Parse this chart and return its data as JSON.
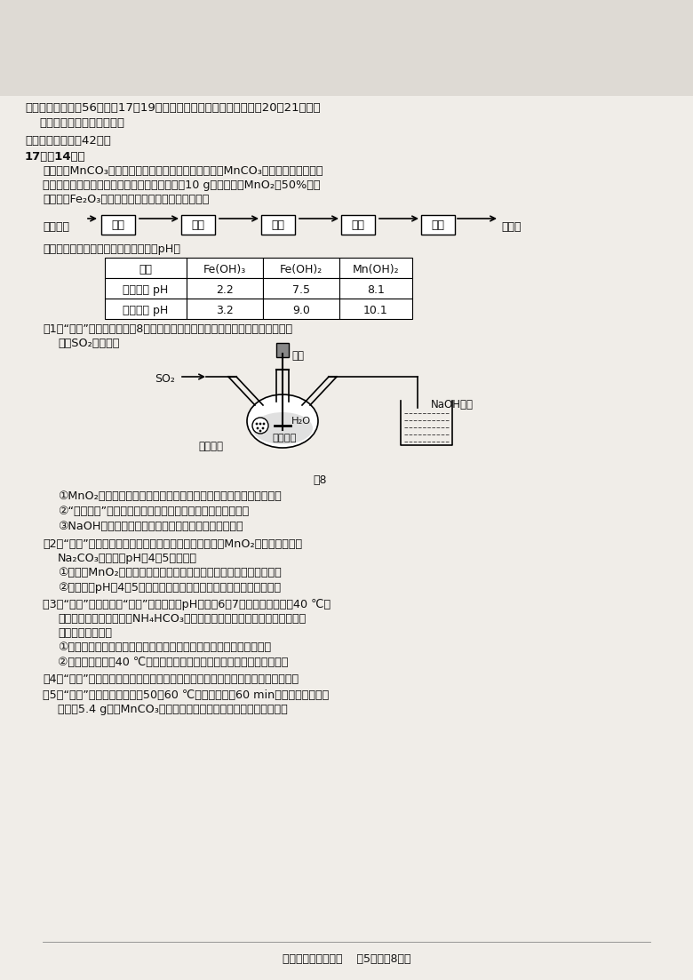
{
  "bg_color": "#f5f5f0",
  "page_bg": "#e8e8e0",
  "title_section": "二、非选择题：共56分。第17～19题为必考题，考生都必须作答。第20～21题为选\n   考题，考生根据要求作答。",
  "subtitle": "（一）必考题：共42分。",
  "q17_header": "17．（14分）",
  "flow_steps": [
    "软锰矿粉",
    "溶浸",
    "除杂",
    "沉锰",
    "洗涤",
    "干燥",
    "碳酸锰"
  ],
  "table_header": [
    "物质",
    "Fe(OH)3",
    "Fe(OH)2",
    "Mn(OH)2"
  ],
  "table_row1": [
    "开始沉淀 pH",
    "2.2",
    "7.5",
    "8.1"
  ],
  "table_row2": [
    "完全沉淀 pH",
    "3.2",
    "9.0",
    "10.1"
  ],
  "table_note": "已知下列物质开始沉淀和完全沉淀时的pH：",
  "footer": "化学模拟测试（一）    第5页（共8页）"
}
